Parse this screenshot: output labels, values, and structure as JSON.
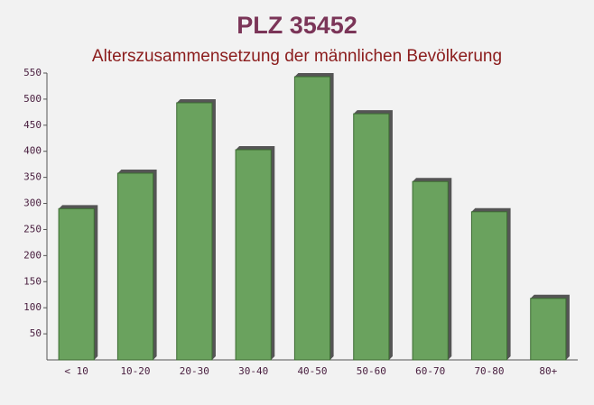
{
  "chart_data": {
    "type": "bar",
    "title": "PLZ 35452",
    "subtitle": "Alterszusammensetzung der männlichen Bevölkerung",
    "categories": [
      "< 10",
      "10-20",
      "20-30",
      "30-40",
      "40-50",
      "50-60",
      "60-70",
      "70-80",
      "80+"
    ],
    "values": [
      290,
      358,
      493,
      403,
      543,
      472,
      342,
      284,
      118
    ],
    "color": "#6aa25e",
    "ylim": [
      0,
      550
    ],
    "yticks": [
      50,
      100,
      150,
      200,
      250,
      300,
      350,
      400,
      450,
      500,
      550
    ],
    "grid": false
  }
}
